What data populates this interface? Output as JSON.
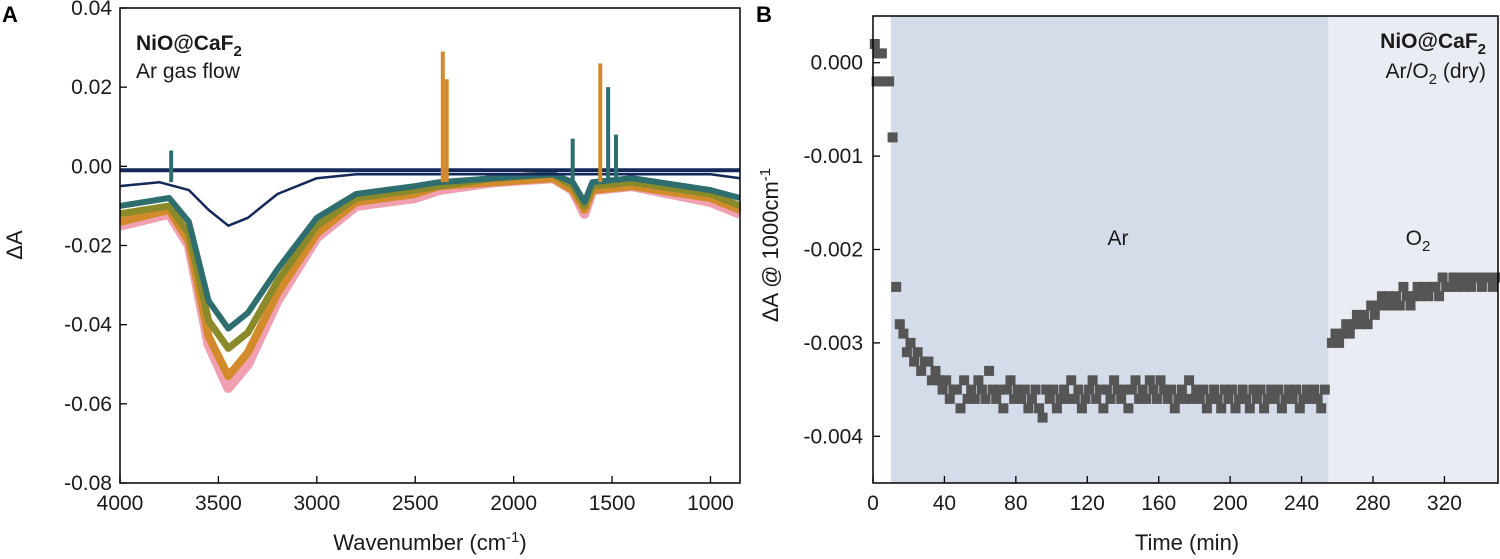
{
  "panels": {
    "a": {
      "letter": "A",
      "sample_name": "NiO@CaF",
      "sample_sub": "2",
      "condition": "Ar gas flow"
    },
    "b": {
      "letter": "B",
      "sample_name": "NiO@CaF",
      "sample_sub": "2",
      "condition_pre": "Ar/O",
      "condition_sub": "2",
      "condition_post": " (dry)",
      "region_ar_label": "Ar",
      "region_o2_label": "O",
      "region_o2_sub": "2"
    }
  },
  "colors": {
    "series_dark": "#14285a",
    "series_mid": "#2f6e6e",
    "series_olive": "#8a8a2a",
    "series_orange": "#d28a2a",
    "series_pink": "#f0a0b0",
    "marker": "#555555",
    "ar_region": "#d3dce8",
    "o2_region": "#e9edf3"
  },
  "chart_data": [
    {
      "type": "line",
      "panel": "A",
      "xlabel": "Wavenumber (cm",
      "xlabel_sup": "-1",
      "xlabel_end": ")",
      "ylabel": "ΔA",
      "xlim": [
        4000,
        850
      ],
      "ylim": [
        -0.08,
        0.04
      ],
      "x_reversed": true,
      "xticks": [
        4000,
        3500,
        3000,
        2500,
        2000,
        1500,
        1000
      ],
      "xtick_labels": [
        "4000",
        "3500",
        "3000",
        "2500",
        "2000",
        "1500",
        "1000"
      ],
      "yticks": [
        -0.08,
        -0.06,
        -0.04,
        -0.02,
        0.0,
        0.02,
        0.04
      ],
      "ytick_labels": [
        "-0.08",
        "-0.06",
        "-0.04",
        "-0.02",
        "0.00",
        "0.02",
        "0.04"
      ],
      "series": [
        {
          "values": [
            [
              4000,
              -0.015
            ],
            [
              3750,
              -0.012
            ],
            [
              3650,
              -0.02
            ],
            [
              3550,
              -0.045
            ],
            [
              3450,
              -0.056
            ],
            [
              3350,
              -0.05
            ],
            [
              3200,
              -0.034
            ],
            [
              3000,
              -0.018
            ],
            [
              2800,
              -0.01
            ],
            [
              2500,
              -0.008
            ],
            [
              2380,
              -0.006
            ],
            [
              2100,
              -0.004
            ],
            [
              1800,
              -0.003
            ],
            [
              1700,
              -0.006
            ],
            [
              1640,
              -0.012
            ],
            [
              1600,
              -0.006
            ],
            [
              1400,
              -0.005
            ],
            [
              1000,
              -0.009
            ],
            [
              850,
              -0.012
            ]
          ]
        },
        {
          "values": [
            [
              4000,
              -0.014
            ],
            [
              3750,
              -0.011
            ],
            [
              3650,
              -0.019
            ],
            [
              3550,
              -0.043
            ],
            [
              3450,
              -0.053
            ],
            [
              3350,
              -0.047
            ],
            [
              3200,
              -0.032
            ],
            [
              3000,
              -0.017
            ],
            [
              2800,
              -0.009
            ],
            [
              2500,
              -0.007
            ],
            [
              2380,
              -0.005
            ],
            [
              2100,
              -0.004
            ],
            [
              1800,
              -0.003
            ],
            [
              1700,
              -0.006
            ],
            [
              1640,
              -0.011
            ],
            [
              1600,
              -0.006
            ],
            [
              1400,
              -0.005
            ],
            [
              1000,
              -0.008
            ],
            [
              850,
              -0.011
            ]
          ]
        },
        {
          "values": [
            [
              4000,
              -0.012
            ],
            [
              3750,
              -0.01
            ],
            [
              3650,
              -0.017
            ],
            [
              3550,
              -0.039
            ],
            [
              3450,
              -0.046
            ],
            [
              3350,
              -0.042
            ],
            [
              3200,
              -0.029
            ],
            [
              3000,
              -0.015
            ],
            [
              2800,
              -0.008
            ],
            [
              2500,
              -0.006
            ],
            [
              2380,
              -0.005
            ],
            [
              2100,
              -0.003
            ],
            [
              1800,
              -0.002
            ],
            [
              1700,
              -0.005
            ],
            [
              1640,
              -0.01
            ],
            [
              1600,
              -0.005
            ],
            [
              1400,
              -0.004
            ],
            [
              1000,
              -0.007
            ],
            [
              850,
              -0.01
            ]
          ]
        },
        {
          "values": [
            [
              4000,
              -0.01
            ],
            [
              3750,
              -0.008
            ],
            [
              3650,
              -0.014
            ],
            [
              3550,
              -0.034
            ],
            [
              3450,
              -0.041
            ],
            [
              3350,
              -0.037
            ],
            [
              3200,
              -0.026
            ],
            [
              3000,
              -0.013
            ],
            [
              2800,
              -0.007
            ],
            [
              2500,
              -0.005
            ],
            [
              2380,
              -0.004
            ],
            [
              2100,
              -0.003
            ],
            [
              1800,
              -0.002
            ],
            [
              1700,
              -0.004
            ],
            [
              1640,
              -0.009
            ],
            [
              1600,
              -0.004
            ],
            [
              1400,
              -0.003
            ],
            [
              1000,
              -0.006
            ],
            [
              850,
              -0.008
            ]
          ]
        },
        {
          "values": [
            [
              4000,
              -0.005
            ],
            [
              3800,
              -0.004
            ],
            [
              3650,
              -0.006
            ],
            [
              3550,
              -0.011
            ],
            [
              3450,
              -0.015
            ],
            [
              3350,
              -0.013
            ],
            [
              3200,
              -0.007
            ],
            [
              3000,
              -0.003
            ],
            [
              2800,
              -0.002
            ],
            [
              2500,
              -0.002
            ],
            [
              2000,
              -0.002
            ],
            [
              1500,
              -0.002
            ],
            [
              1000,
              -0.002
            ],
            [
              850,
              -0.003
            ]
          ]
        },
        {
          "values": [
            [
              4000,
              -0.001
            ],
            [
              3000,
              -0.001
            ],
            [
              2000,
              -0.001
            ],
            [
              1000,
              -0.001
            ],
            [
              850,
              -0.001
            ]
          ]
        }
      ],
      "peaks": [
        {
          "x": 2360,
          "y": 0.029
        },
        {
          "x": 2340,
          "y": 0.022
        },
        {
          "x": 1700,
          "y": 0.007
        },
        {
          "x": 1560,
          "y": 0.026
        },
        {
          "x": 1520,
          "y": 0.02
        },
        {
          "x": 1480,
          "y": 0.008
        },
        {
          "x": 3740,
          "y": 0.004
        }
      ]
    },
    {
      "type": "scatter",
      "panel": "B",
      "xlabel": "Time (min)",
      "ylabel": "ΔA @ 1000cm",
      "ylabel_sup": "-1",
      "xlim": [
        0,
        350
      ],
      "ylim": [
        -0.0045,
        0.0005
      ],
      "xticks": [
        0,
        40,
        80,
        120,
        160,
        200,
        240,
        280,
        320
      ],
      "xtick_labels": [
        "0",
        "40",
        "80",
        "120",
        "160",
        "200",
        "240",
        "280",
        "320"
      ],
      "yticks": [
        0.0,
        -0.001,
        -0.002,
        -0.003,
        -0.004
      ],
      "ytick_labels": [
        "0.000",
        "-0.001",
        "-0.002",
        "-0.003",
        "-0.004"
      ],
      "regions": [
        {
          "x": [
            10,
            255
          ]
        },
        {
          "x": [
            255,
            350
          ]
        }
      ],
      "points": [
        [
          1,
          0.0002
        ],
        [
          3,
          0.0001
        ],
        [
          5,
          0.0001
        ],
        [
          2,
          -0.0002
        ],
        [
          6,
          -0.0002
        ],
        [
          9,
          -0.0002
        ],
        [
          11,
          -0.0008
        ],
        [
          13,
          -0.0024
        ],
        [
          15,
          -0.0028
        ],
        [
          17,
          -0.0029
        ],
        [
          19,
          -0.0031
        ],
        [
          21,
          -0.003
        ],
        [
          23,
          -0.0032
        ],
        [
          25,
          -0.0031
        ],
        [
          27,
          -0.0033
        ],
        [
          29,
          -0.0032
        ],
        [
          31,
          -0.0032
        ],
        [
          33,
          -0.0034
        ],
        [
          35,
          -0.0033
        ],
        [
          37,
          -0.0034
        ],
        [
          39,
          -0.0035
        ],
        [
          41,
          -0.0034
        ],
        [
          43,
          -0.0036
        ],
        [
          45,
          -0.0035
        ],
        [
          47,
          -0.0035
        ],
        [
          49,
          -0.0037
        ],
        [
          51,
          -0.0034
        ],
        [
          53,
          -0.0036
        ],
        [
          55,
          -0.0035
        ],
        [
          57,
          -0.0036
        ],
        [
          59,
          -0.0034
        ],
        [
          61,
          -0.0035
        ],
        [
          63,
          -0.0036
        ],
        [
          65,
          -0.0033
        ],
        [
          67,
          -0.0035
        ],
        [
          69,
          -0.0036
        ],
        [
          71,
          -0.0035
        ],
        [
          73,
          -0.0037
        ],
        [
          75,
          -0.0035
        ],
        [
          77,
          -0.0034
        ],
        [
          79,
          -0.0036
        ],
        [
          81,
          -0.0035
        ],
        [
          83,
          -0.0036
        ],
        [
          85,
          -0.0035
        ],
        [
          87,
          -0.0037
        ],
        [
          89,
          -0.0036
        ],
        [
          91,
          -0.0035
        ],
        [
          93,
          -0.0037
        ],
        [
          95,
          -0.0038
        ],
        [
          97,
          -0.0035
        ],
        [
          99,
          -0.0036
        ],
        [
          101,
          -0.0035
        ],
        [
          103,
          -0.0037
        ],
        [
          105,
          -0.0036
        ],
        [
          107,
          -0.0035
        ],
        [
          109,
          -0.0036
        ],
        [
          111,
          -0.0034
        ],
        [
          113,
          -0.0036
        ],
        [
          115,
          -0.0035
        ],
        [
          117,
          -0.0037
        ],
        [
          119,
          -0.0036
        ],
        [
          121,
          -0.0035
        ],
        [
          123,
          -0.0034
        ],
        [
          125,
          -0.0036
        ],
        [
          127,
          -0.0035
        ],
        [
          129,
          -0.0037
        ],
        [
          131,
          -0.0035
        ],
        [
          133,
          -0.0036
        ],
        [
          135,
          -0.0034
        ],
        [
          137,
          -0.0035
        ],
        [
          139,
          -0.0036
        ],
        [
          141,
          -0.0035
        ],
        [
          143,
          -0.0037
        ],
        [
          145,
          -0.0035
        ],
        [
          147,
          -0.0034
        ],
        [
          149,
          -0.0036
        ],
        [
          151,
          -0.0035
        ],
        [
          153,
          -0.0036
        ],
        [
          155,
          -0.0034
        ],
        [
          157,
          -0.0035
        ],
        [
          159,
          -0.0036
        ],
        [
          161,
          -0.0034
        ],
        [
          163,
          -0.0035
        ],
        [
          165,
          -0.0036
        ],
        [
          167,
          -0.0035
        ],
        [
          169,
          -0.0037
        ],
        [
          171,
          -0.0036
        ],
        [
          173,
          -0.0035
        ],
        [
          175,
          -0.0036
        ],
        [
          177,
          -0.0034
        ],
        [
          179,
          -0.0036
        ],
        [
          181,
          -0.0035
        ],
        [
          183,
          -0.0036
        ],
        [
          185,
          -0.0035
        ],
        [
          187,
          -0.0037
        ],
        [
          189,
          -0.0036
        ],
        [
          191,
          -0.0035
        ],
        [
          193,
          -0.0036
        ],
        [
          195,
          -0.0037
        ],
        [
          197,
          -0.0035
        ],
        [
          199,
          -0.0036
        ],
        [
          201,
          -0.0035
        ],
        [
          203,
          -0.0037
        ],
        [
          205,
          -0.0036
        ],
        [
          207,
          -0.0035
        ],
        [
          209,
          -0.0036
        ],
        [
          211,
          -0.0037
        ],
        [
          213,
          -0.0035
        ],
        [
          215,
          -0.0036
        ],
        [
          217,
          -0.0035
        ],
        [
          219,
          -0.0037
        ],
        [
          221,
          -0.0036
        ],
        [
          223,
          -0.0035
        ],
        [
          225,
          -0.0036
        ],
        [
          227,
          -0.0035
        ],
        [
          229,
          -0.0037
        ],
        [
          231,
          -0.0036
        ],
        [
          233,
          -0.0035
        ],
        [
          235,
          -0.0036
        ],
        [
          237,
          -0.0035
        ],
        [
          239,
          -0.0037
        ],
        [
          241,
          -0.0036
        ],
        [
          243,
          -0.0035
        ],
        [
          245,
          -0.0036
        ],
        [
          247,
          -0.0035
        ],
        [
          249,
          -0.0036
        ],
        [
          251,
          -0.0037
        ],
        [
          253,
          -0.0035
        ],
        [
          257,
          -0.003
        ],
        [
          259,
          -0.0029
        ],
        [
          261,
          -0.003
        ],
        [
          263,
          -0.0029
        ],
        [
          265,
          -0.0028
        ],
        [
          267,
          -0.0029
        ],
        [
          269,
          -0.0028
        ],
        [
          271,
          -0.0027
        ],
        [
          273,
          -0.0028
        ],
        [
          275,
          -0.0027
        ],
        [
          277,
          -0.0028
        ],
        [
          279,
          -0.0026
        ],
        [
          281,
          -0.0027
        ],
        [
          283,
          -0.0026
        ],
        [
          285,
          -0.0025
        ],
        [
          287,
          -0.0026
        ],
        [
          289,
          -0.0025
        ],
        [
          291,
          -0.0026
        ],
        [
          293,
          -0.0025
        ],
        [
          295,
          -0.0026
        ],
        [
          297,
          -0.0024
        ],
        [
          299,
          -0.0025
        ],
        [
          301,
          -0.0026
        ],
        [
          303,
          -0.0025
        ],
        [
          305,
          -0.0024
        ],
        [
          307,
          -0.0025
        ],
        [
          309,
          -0.0024
        ],
        [
          311,
          -0.0025
        ],
        [
          313,
          -0.0024
        ],
        [
          315,
          -0.0024
        ],
        [
          317,
          -0.0025
        ],
        [
          319,
          -0.0023
        ],
        [
          321,
          -0.0024
        ],
        [
          323,
          -0.0024
        ],
        [
          325,
          -0.0023
        ],
        [
          327,
          -0.0024
        ],
        [
          329,
          -0.0023
        ],
        [
          331,
          -0.0024
        ],
        [
          333,
          -0.0023
        ],
        [
          335,
          -0.0024
        ],
        [
          337,
          -0.0023
        ],
        [
          339,
          -0.0023
        ],
        [
          341,
          -0.0024
        ],
        [
          343,
          -0.0023
        ],
        [
          345,
          -0.0023
        ],
        [
          347,
          -0.0024
        ],
        [
          349,
          -0.0023
        ]
      ]
    }
  ]
}
